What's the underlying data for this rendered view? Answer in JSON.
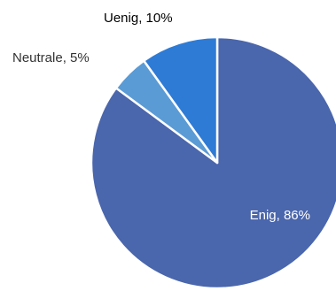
{
  "chart_data": {
    "type": "pie",
    "title": "",
    "slices": [
      {
        "label": "Enig",
        "value": 86,
        "display": "Enig, 86%",
        "color": "#4A66AC",
        "label_color": "#ffffff"
      },
      {
        "label": "Neutrale",
        "value": 5,
        "display": "Neutrale, 5%",
        "color": "#5B9BD5",
        "label_color": "#333333"
      },
      {
        "label": "Uenig",
        "value": 10,
        "display": "Uenig, 10%",
        "color": "#2E7BD6",
        "label_color": "#000000"
      }
    ],
    "legend": "none",
    "data_labels": "category-and-percent"
  }
}
